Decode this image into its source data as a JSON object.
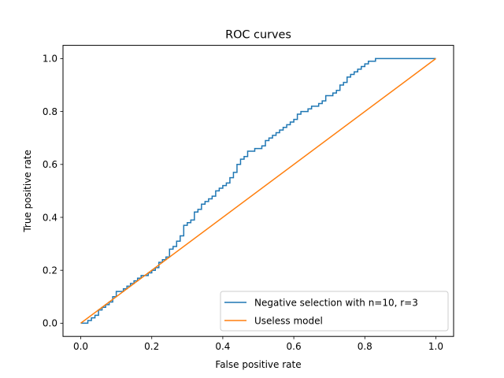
{
  "chart_data": {
    "type": "line",
    "title": "ROC curves",
    "xlabel": "False positive rate",
    "ylabel": "True positive rate",
    "xlim": [
      -0.05,
      1.05
    ],
    "ylim": [
      -0.05,
      1.05
    ],
    "xticks": [
      0.0,
      0.2,
      0.4,
      0.6,
      0.8,
      1.0
    ],
    "xtick_labels": [
      "0.0",
      "0.2",
      "0.4",
      "0.6",
      "0.8",
      "1.0"
    ],
    "yticks": [
      0.0,
      0.2,
      0.4,
      0.6,
      0.8,
      1.0
    ],
    "ytick_labels": [
      "0.0",
      "0.2",
      "0.4",
      "0.6",
      "0.8",
      "1.0"
    ],
    "grid": false,
    "legend_position": "lower-right",
    "series": [
      {
        "name": "Negative selection with n=10, r=3",
        "color": "#1f77b4",
        "x": [
          0.0,
          0.01,
          0.02,
          0.03,
          0.04,
          0.05,
          0.06,
          0.07,
          0.08,
          0.09,
          0.1,
          0.11,
          0.12,
          0.13,
          0.14,
          0.15,
          0.16,
          0.17,
          0.18,
          0.19,
          0.2,
          0.21,
          0.22,
          0.23,
          0.24,
          0.25,
          0.26,
          0.27,
          0.28,
          0.29,
          0.3,
          0.31,
          0.32,
          0.33,
          0.34,
          0.35,
          0.36,
          0.37,
          0.38,
          0.39,
          0.4,
          0.41,
          0.42,
          0.43,
          0.44,
          0.45,
          0.46,
          0.47,
          0.48,
          0.49,
          0.5,
          0.51,
          0.52,
          0.53,
          0.54,
          0.55,
          0.56,
          0.57,
          0.58,
          0.59,
          0.6,
          0.61,
          0.62,
          0.63,
          0.64,
          0.65,
          0.66,
          0.67,
          0.68,
          0.69,
          0.7,
          0.71,
          0.72,
          0.73,
          0.74,
          0.75,
          0.76,
          0.77,
          0.78,
          0.79,
          0.8,
          0.81,
          0.82,
          0.83,
          0.84,
          0.85,
          0.86,
          0.87,
          0.88,
          0.89,
          0.9,
          0.91,
          0.92,
          0.93,
          0.94,
          0.95,
          0.96,
          0.97,
          0.98,
          0.99,
          1.0
        ],
        "y": [
          0.0,
          0.0,
          0.01,
          0.02,
          0.03,
          0.05,
          0.06,
          0.07,
          0.08,
          0.1,
          0.12,
          0.12,
          0.13,
          0.14,
          0.15,
          0.16,
          0.17,
          0.18,
          0.18,
          0.19,
          0.2,
          0.21,
          0.23,
          0.24,
          0.25,
          0.28,
          0.29,
          0.31,
          0.33,
          0.37,
          0.38,
          0.39,
          0.42,
          0.43,
          0.45,
          0.46,
          0.47,
          0.48,
          0.5,
          0.51,
          0.52,
          0.53,
          0.55,
          0.57,
          0.6,
          0.62,
          0.63,
          0.65,
          0.65,
          0.66,
          0.66,
          0.67,
          0.69,
          0.7,
          0.71,
          0.72,
          0.73,
          0.74,
          0.75,
          0.76,
          0.77,
          0.79,
          0.8,
          0.8,
          0.81,
          0.82,
          0.82,
          0.83,
          0.84,
          0.86,
          0.86,
          0.87,
          0.88,
          0.9,
          0.91,
          0.93,
          0.94,
          0.95,
          0.96,
          0.97,
          0.98,
          0.99,
          0.99,
          1.0,
          1.0,
          1.0,
          1.0,
          1.0,
          1.0,
          1.0,
          1.0,
          1.0,
          1.0,
          1.0,
          1.0,
          1.0,
          1.0,
          1.0,
          1.0,
          1.0,
          1.0
        ]
      },
      {
        "name": "Useless model",
        "color": "#ff7f0e",
        "x": [
          0.0,
          1.0
        ],
        "y": [
          0.0,
          1.0
        ]
      }
    ]
  }
}
